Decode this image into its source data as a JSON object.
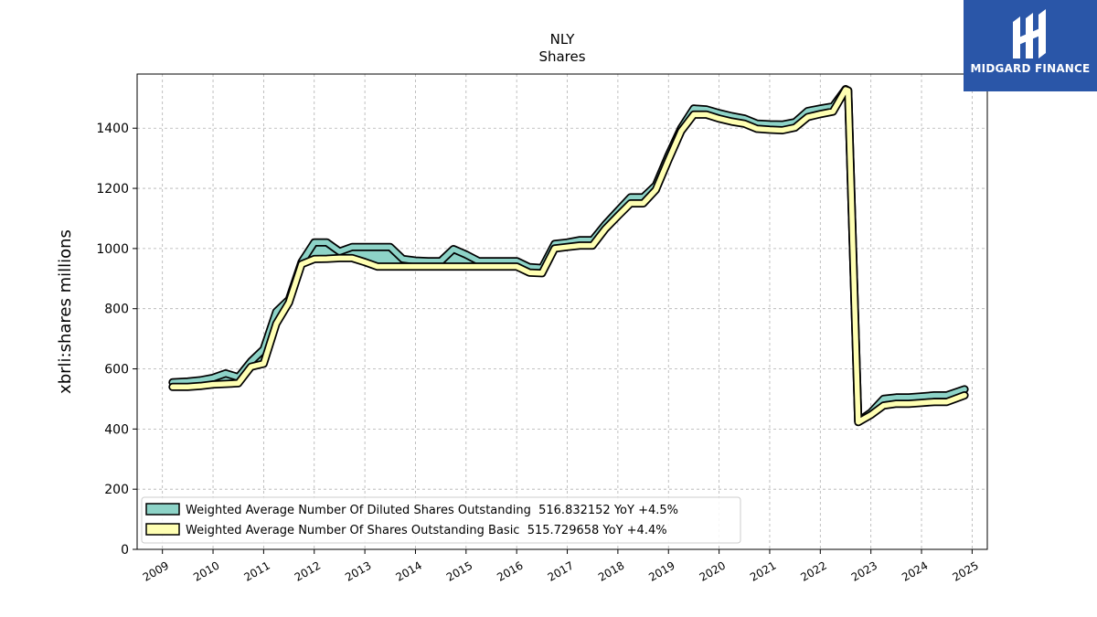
{
  "chart_data": {
    "type": "line",
    "title": "NLY",
    "subtitle": "Shares",
    "ylabel": "xbrli:shares millions",
    "xlabel": "",
    "xlim": [
      2008.5,
      2025.3
    ],
    "ylim": [
      0,
      1580
    ],
    "yticks": [
      0,
      200,
      400,
      600,
      800,
      1000,
      1200,
      1400
    ],
    "xticks": [
      "2009",
      "2010",
      "2011",
      "2012",
      "2013",
      "2014",
      "2015",
      "2016",
      "2017",
      "2018",
      "2019",
      "2020",
      "2021",
      "2022",
      "2023",
      "2024",
      "2025"
    ],
    "grid": true,
    "legend_position": "lower-left",
    "series": [
      {
        "name": "Weighted Average Number Of Diluted Shares Outstanding  516.832152 YoY +4.5%",
        "color": "#8dd3c7",
        "points": [
          [
            2009.2,
            555
          ],
          [
            2009.5,
            558
          ],
          [
            2009.75,
            562
          ],
          [
            2010.0,
            570
          ],
          [
            2010.25,
            585
          ],
          [
            2010.5,
            572
          ],
          [
            2010.75,
            625
          ],
          [
            2011.0,
            665
          ],
          [
            2011.25,
            790
          ],
          [
            2011.5,
            830
          ],
          [
            2011.75,
            955
          ],
          [
            2012.0,
            1020
          ],
          [
            2012.25,
            1020
          ],
          [
            2012.5,
            990
          ],
          [
            2012.75,
            1005
          ],
          [
            2013.0,
            1005
          ],
          [
            2013.25,
            1005
          ],
          [
            2013.5,
            1005
          ],
          [
            2013.75,
            965
          ],
          [
            2014.0,
            960
          ],
          [
            2014.25,
            958
          ],
          [
            2014.5,
            958
          ],
          [
            2014.75,
            998
          ],
          [
            2015.0,
            980
          ],
          [
            2015.25,
            958
          ],
          [
            2015.5,
            958
          ],
          [
            2015.75,
            958
          ],
          [
            2016.0,
            958
          ],
          [
            2016.25,
            938
          ],
          [
            2016.5,
            935
          ],
          [
            2016.75,
            1015
          ],
          [
            2017.0,
            1020
          ],
          [
            2017.25,
            1028
          ],
          [
            2017.5,
            1028
          ],
          [
            2017.75,
            1080
          ],
          [
            2018.0,
            1125
          ],
          [
            2018.25,
            1170
          ],
          [
            2018.5,
            1170
          ],
          [
            2018.75,
            1210
          ],
          [
            2019.0,
            1310
          ],
          [
            2019.25,
            1400
          ],
          [
            2019.5,
            1465
          ],
          [
            2019.75,
            1462
          ],
          [
            2020.0,
            1450
          ],
          [
            2020.25,
            1440
          ],
          [
            2020.5,
            1432
          ],
          [
            2020.75,
            1415
          ],
          [
            2021.0,
            1413
          ],
          [
            2021.25,
            1412
          ],
          [
            2021.5,
            1420
          ],
          [
            2021.75,
            1457
          ],
          [
            2022.0,
            1465
          ],
          [
            2022.25,
            1472
          ],
          [
            2022.5,
            1530
          ],
          [
            2022.55,
            1525
          ],
          [
            2022.75,
            425
          ],
          [
            2023.0,
            455
          ],
          [
            2023.25,
            500
          ],
          [
            2023.5,
            505
          ],
          [
            2023.75,
            505
          ],
          [
            2024.0,
            508
          ],
          [
            2024.25,
            512
          ],
          [
            2024.5,
            512
          ],
          [
            2024.85,
            532
          ]
        ]
      },
      {
        "name": "Weighted Average Number Of Shares Outstanding Basic  515.729658 YoY +4.4%",
        "color": "#ffffb3",
        "points": [
          [
            2009.2,
            540
          ],
          [
            2009.5,
            540
          ],
          [
            2009.75,
            543
          ],
          [
            2010.0,
            548
          ],
          [
            2010.25,
            550
          ],
          [
            2010.5,
            552
          ],
          [
            2010.75,
            607
          ],
          [
            2011.0,
            617
          ],
          [
            2011.25,
            750
          ],
          [
            2011.5,
            820
          ],
          [
            2011.75,
            948
          ],
          [
            2012.0,
            965
          ],
          [
            2012.25,
            966
          ],
          [
            2012.5,
            968
          ],
          [
            2012.75,
            968
          ],
          [
            2013.0,
            955
          ],
          [
            2013.25,
            940
          ],
          [
            2013.5,
            940
          ],
          [
            2013.75,
            940
          ],
          [
            2014.0,
            940
          ],
          [
            2014.25,
            940
          ],
          [
            2014.5,
            940
          ],
          [
            2014.75,
            940
          ],
          [
            2015.0,
            940
          ],
          [
            2015.25,
            940
          ],
          [
            2015.5,
            940
          ],
          [
            2015.75,
            940
          ],
          [
            2016.0,
            940
          ],
          [
            2016.25,
            920
          ],
          [
            2016.5,
            918
          ],
          [
            2016.75,
            1000
          ],
          [
            2017.0,
            1005
          ],
          [
            2017.25,
            1010
          ],
          [
            2017.5,
            1010
          ],
          [
            2017.75,
            1065
          ],
          [
            2018.0,
            1108
          ],
          [
            2018.25,
            1150
          ],
          [
            2018.5,
            1150
          ],
          [
            2018.75,
            1195
          ],
          [
            2019.0,
            1295
          ],
          [
            2019.25,
            1390
          ],
          [
            2019.5,
            1445
          ],
          [
            2019.75,
            1445
          ],
          [
            2020.0,
            1432
          ],
          [
            2020.25,
            1422
          ],
          [
            2020.5,
            1415
          ],
          [
            2020.75,
            1398
          ],
          [
            2021.0,
            1395
          ],
          [
            2021.25,
            1393
          ],
          [
            2021.5,
            1402
          ],
          [
            2021.75,
            1437
          ],
          [
            2022.0,
            1447
          ],
          [
            2022.25,
            1455
          ],
          [
            2022.5,
            1528
          ],
          [
            2022.55,
            1525
          ],
          [
            2022.75,
            423
          ],
          [
            2023.0,
            447
          ],
          [
            2023.25,
            478
          ],
          [
            2023.5,
            484
          ],
          [
            2023.75,
            484
          ],
          [
            2024.0,
            487
          ],
          [
            2024.25,
            490
          ],
          [
            2024.5,
            490
          ],
          [
            2024.85,
            512
          ]
        ]
      }
    ]
  },
  "logo": {
    "text": "MIDGARD FINANCE",
    "icon": "midgard-logo-icon",
    "background": "#2a56a8"
  }
}
